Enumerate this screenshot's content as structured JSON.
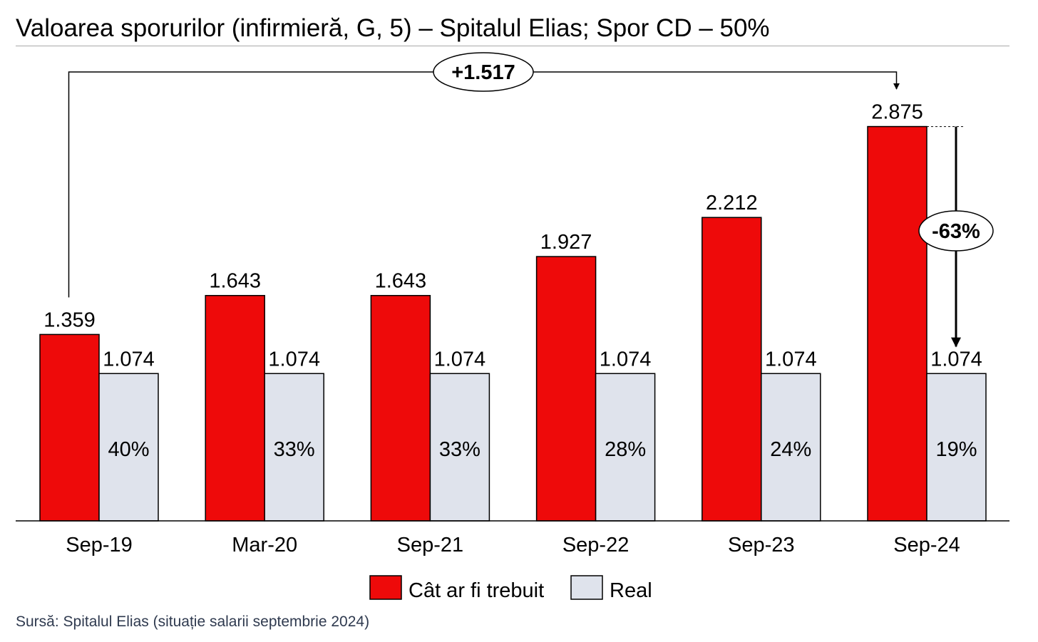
{
  "title": "Valoarea sporurilor (infirmieră, G, 5) – Spitalul Elias; Spor CD – 50%",
  "source": "Sursă: Spitalul Elias (situație salarii septembrie 2024)",
  "colors": {
    "expected": "#ee0a0a",
    "actual": "#dfe3ec",
    "outline": "#000000",
    "text": "#000000",
    "source_text": "#2f3a4f"
  },
  "chart_data": {
    "type": "bar",
    "title": "Valoarea sporurilor (infirmieră, G, 5) – Spitalul Elias; Spor CD – 50%",
    "xlabel": "",
    "ylabel": "",
    "ylim": [
      0,
      3000
    ],
    "grid": false,
    "legend_position": "bottom-center",
    "categories": [
      "Sep-19",
      "Mar-20",
      "Sep-21",
      "Sep-22",
      "Sep-23",
      "Sep-24"
    ],
    "series": [
      {
        "name": "Cât ar fi trebuit",
        "values": [
          1359,
          1643,
          1643,
          1927,
          2212,
          2875
        ],
        "labels": [
          "1.359",
          "1.643",
          "1.643",
          "1.927",
          "2.212",
          "2.875"
        ]
      },
      {
        "name": "Real",
        "values": [
          1074,
          1074,
          1074,
          1074,
          1074,
          1074
        ],
        "labels": [
          "1.074",
          "1.074",
          "1.074",
          "1.074",
          "1.074",
          "1.074"
        ],
        "percent_labels": [
          "40%",
          "33%",
          "33%",
          "28%",
          "24%",
          "19%"
        ]
      }
    ],
    "annotations": [
      {
        "type": "increase-bracket",
        "from": "Sep-19",
        "to": "Sep-24",
        "text": "+1.517"
      },
      {
        "type": "gap-arrow",
        "category": "Sep-24",
        "text": "-63%"
      }
    ]
  }
}
